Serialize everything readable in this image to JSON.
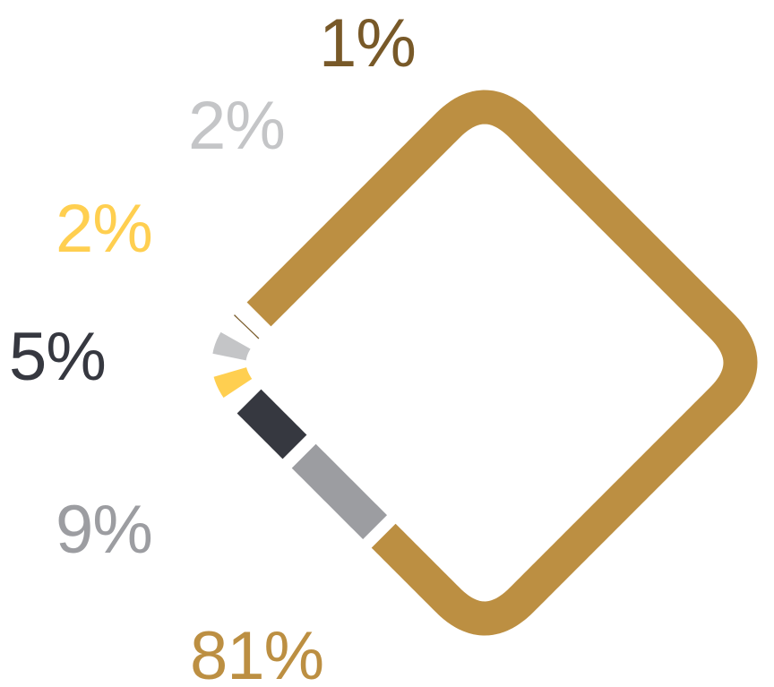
{
  "chart_data": {
    "type": "pie",
    "shape": "rounded-diamond-ring",
    "title": "",
    "slices": [
      {
        "label": "81%",
        "value": 81,
        "color": "#BC8F42"
      },
      {
        "label": "9%",
        "value": 9,
        "color": "#9C9DA1"
      },
      {
        "label": "5%",
        "value": 5,
        "color": "#363840"
      },
      {
        "label": "2%",
        "value": 2,
        "color": "#FFCF50"
      },
      {
        "label": "2%",
        "value": 2,
        "color": "#C4C5C7"
      },
      {
        "label": "1%",
        "value": 1,
        "color": "#785928"
      }
    ]
  }
}
